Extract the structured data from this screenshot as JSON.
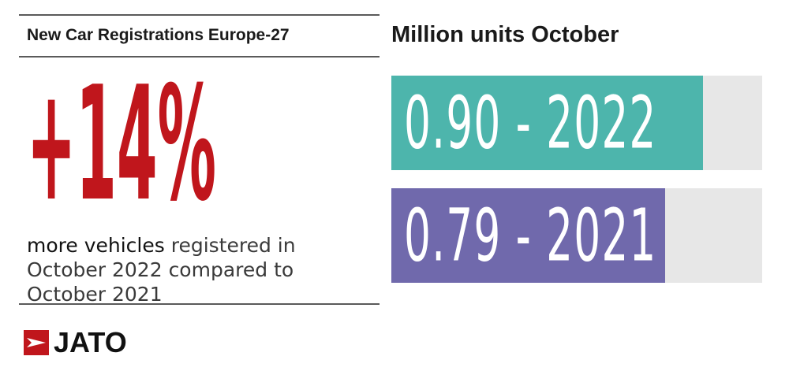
{
  "left_panel": {
    "title": "New Car Registrations Europe-27",
    "headline_value": "+14%",
    "caption_highlight": "more vehicles",
    "caption_rest": " registered in October 2022 compared to October 2021"
  },
  "right_panel": {
    "title": "Million units October"
  },
  "chart_data": {
    "type": "bar",
    "orientation": "horizontal",
    "title": "Million units October",
    "categories": [
      "2022",
      "2021"
    ],
    "values": [
      0.9,
      0.79
    ],
    "labels": [
      "0.90 - 2022",
      "0.79 - 2021"
    ],
    "bar_colors": [
      "#4db5ac",
      "#7069ac"
    ],
    "track_color": "#e7e7e7",
    "xlim": [
      0,
      1.07
    ],
    "grid": false
  },
  "colors": {
    "accent_red": "#c0161c",
    "rule": "#5a5a5a",
    "text_dark": "#1a1a1a"
  },
  "logo": {
    "text": "JATO",
    "icon": "jato-arrow-icon"
  }
}
